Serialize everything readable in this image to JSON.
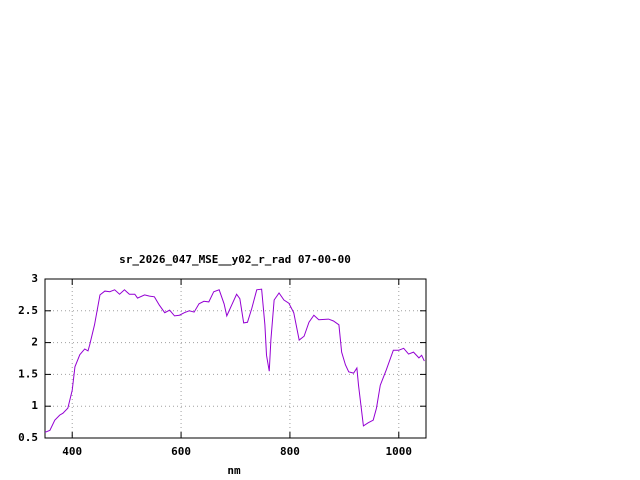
{
  "chart_data": {
    "type": "line",
    "title": "sr_2026_047_MSE__y02_r_rad 07-00-00",
    "xlabel": "nm",
    "x": [
      350,
      359,
      368,
      377,
      383,
      392,
      400,
      405,
      414,
      423,
      429,
      432,
      441,
      451,
      460,
      469,
      478,
      487,
      496,
      505,
      515,
      520,
      533,
      542,
      551,
      560,
      570,
      579,
      588,
      597,
      606,
      615,
      624,
      633,
      642,
      651,
      660,
      670,
      679,
      684,
      693,
      702,
      708,
      715,
      722,
      730,
      739,
      748,
      754,
      757,
      762,
      765,
      771,
      780,
      789,
      798,
      807,
      817,
      826,
      835,
      844,
      853,
      871,
      880,
      890,
      895,
      902,
      908,
      917,
      923,
      926,
      935,
      944,
      953,
      959,
      966,
      977,
      990,
      1000,
      1009,
      1018,
      1027,
      1037,
      1042,
      1047
    ],
    "values": [
      0.59,
      0.62,
      0.78,
      0.86,
      0.89,
      0.97,
      1.25,
      1.62,
      1.81,
      1.9,
      1.87,
      1.96,
      2.28,
      2.75,
      2.81,
      2.8,
      2.83,
      2.76,
      2.83,
      2.76,
      2.76,
      2.7,
      2.75,
      2.73,
      2.72,
      2.59,
      2.47,
      2.51,
      2.42,
      2.43,
      2.47,
      2.5,
      2.48,
      2.61,
      2.65,
      2.64,
      2.8,
      2.83,
      2.61,
      2.42,
      2.59,
      2.76,
      2.69,
      2.31,
      2.32,
      2.54,
      2.83,
      2.84,
      2.28,
      1.8,
      1.55,
      2.04,
      2.67,
      2.78,
      2.67,
      2.62,
      2.47,
      2.04,
      2.1,
      2.32,
      2.43,
      2.36,
      2.37,
      2.34,
      2.28,
      1.85,
      1.65,
      1.54,
      1.52,
      1.6,
      1.33,
      0.69,
      0.74,
      0.78,
      0.97,
      1.33,
      1.57,
      1.88,
      1.88,
      1.91,
      1.82,
      1.85,
      1.76,
      1.8,
      1.71
    ],
    "color": "#9400d3",
    "xlim": [
      350,
      1050
    ],
    "xticks": [
      400,
      600,
      800,
      1000
    ],
    "ylim": [
      0.5,
      3
    ],
    "yticks": [
      0.5,
      1,
      1.5,
      2,
      2.5,
      3
    ],
    "grid": true
  }
}
